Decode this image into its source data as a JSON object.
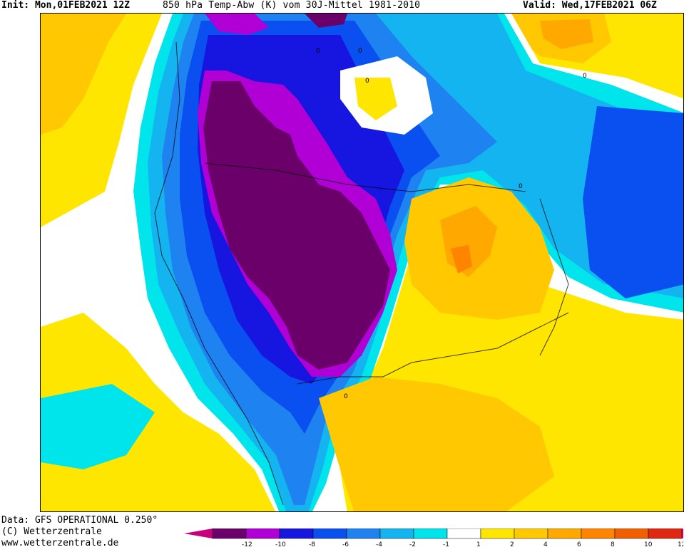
{
  "header": {
    "init": "Init: Mon,01FEB2021 12Z",
    "title": "850 hPa Temp-Abw (K) vom 30J-Mittel 1981-2010",
    "valid": "Valid: Wed,17FEB2021 06Z"
  },
  "footer": {
    "line1": "Data: GFS OPERATIONAL 0.250°",
    "line2": "(C) Wetterzentrale",
    "line3": "www.wetterzentrale.de"
  },
  "contour_labels": [
    "0",
    "0",
    "0",
    "0",
    "0",
    "0"
  ],
  "legend": {
    "ticks": [
      "-12",
      "-10",
      "-8",
      "-6",
      "-4",
      "-2",
      "-1",
      "1",
      "2",
      "4",
      "6",
      "8",
      "10",
      "12"
    ],
    "colors": [
      "#c8007a",
      "#6b006b",
      "#b000d6",
      "#1616e0",
      "#0a50f0",
      "#1e82f0",
      "#14b4f0",
      "#00e4ec",
      "#ffffff",
      "#ffe600",
      "#ffc800",
      "#ffa800",
      "#ff8400",
      "#f06000",
      "#e02810",
      "#c80078"
    ]
  },
  "anomaly_colors": {
    "deep_cold": "#6b006b",
    "very_cold": "#b000d6",
    "cold_blue": "#1616e0",
    "mid_blue": "#0a50f0",
    "light_blue": "#1e82f0",
    "sky_blue": "#14b4f0",
    "cyan": "#00e4ec",
    "neutral": "#ffffff",
    "warm_yellow": "#ffe600",
    "warm_gold": "#ffc800",
    "warm_orange": "#ffa800",
    "hot_orange": "#ff8400"
  }
}
